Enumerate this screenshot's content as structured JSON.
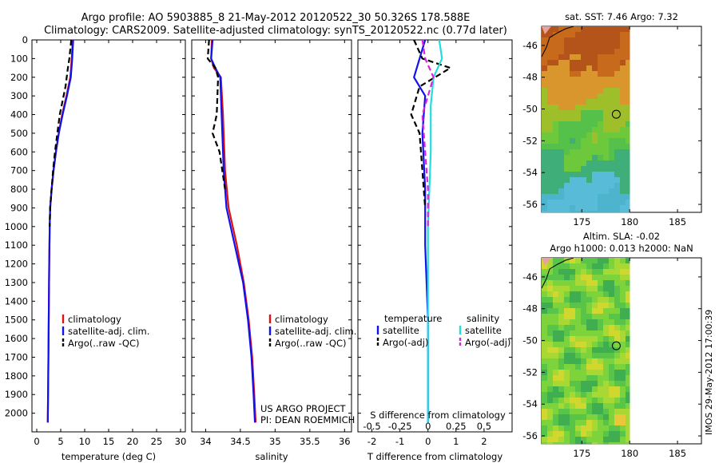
{
  "header": {
    "title_line1": "Argo profile: AO 5903885_8 21-May-2012 20120522_30 50.326S 178.588E",
    "title_line2": "Climatology: CARS2009. Satellite-adjusted climatology: synTS_20120522.nc (0.77d later)"
  },
  "stamp": "IMOS 29-May-2012 17:00:39",
  "credits": {
    "line1": "US ARGO PROJECT",
    "line2": "PI: DEAN ROEMMICH"
  },
  "colors": {
    "red": "#dd1111",
    "blue": "#1111ee",
    "black": "#000000",
    "cyan": "#22dddd",
    "magenta": "#dd22dd"
  },
  "chart_data": [
    {
      "type": "line",
      "xlabel": "temperature (deg C)",
      "ylabel": "",
      "xlim": [
        -1,
        31
      ],
      "ylim": [
        2100,
        0
      ],
      "xticks": [
        "0",
        "5",
        "10",
        "15",
        "20",
        "25",
        "30"
      ],
      "yticks": [
        "0",
        "100",
        "200",
        "300",
        "400",
        "500",
        "600",
        "700",
        "800",
        "900",
        "1000",
        "1100",
        "1200",
        "1300",
        "1400",
        "1500",
        "1600",
        "1700",
        "1800",
        "1900",
        "2000"
      ],
      "legend": [
        "climatology",
        "satellite-adj. clim.",
        "Argo(..raw -QC)"
      ],
      "series": [
        {
          "name": "climatology",
          "color": "red",
          "style": "solid",
          "points": [
            [
              7.5,
              0
            ],
            [
              7.3,
              100
            ],
            [
              7.0,
              200
            ],
            [
              6.2,
              300
            ],
            [
              5.3,
              400
            ],
            [
              4.6,
              500
            ],
            [
              4.0,
              600
            ],
            [
              3.5,
              700
            ],
            [
              3.1,
              800
            ],
            [
              2.8,
              900
            ],
            [
              2.7,
              1000
            ],
            [
              2.6,
              1200
            ],
            [
              2.5,
              1500
            ],
            [
              2.4,
              1800
            ],
            [
              2.3,
              2050
            ]
          ]
        },
        {
          "name": "satellite-adj. clim.",
          "color": "blue",
          "style": "solid",
          "points": [
            [
              7.6,
              0
            ],
            [
              7.4,
              100
            ],
            [
              7.1,
              200
            ],
            [
              6.3,
              300
            ],
            [
              5.4,
              400
            ],
            [
              4.6,
              500
            ],
            [
              4.0,
              600
            ],
            [
              3.5,
              700
            ],
            [
              3.1,
              800
            ],
            [
              2.8,
              900
            ],
            [
              2.7,
              1000
            ],
            [
              2.6,
              1200
            ],
            [
              2.5,
              1500
            ],
            [
              2.4,
              1800
            ],
            [
              2.3,
              2050
            ]
          ]
        },
        {
          "name": "Argo(..raw -QC)",
          "color": "black",
          "style": "dashed",
          "points": [
            [
              7.2,
              0
            ],
            [
              6.8,
              100
            ],
            [
              6.5,
              150
            ],
            [
              6.0,
              250
            ],
            [
              4.8,
              400
            ],
            [
              4.3,
              500
            ],
            [
              3.8,
              600
            ],
            [
              3.4,
              700
            ],
            [
              3.1,
              800
            ],
            [
              2.8,
              900
            ],
            [
              2.7,
              1000
            ]
          ]
        }
      ]
    },
    {
      "type": "line",
      "xlabel": "salinity",
      "ylabel": "",
      "xlim": [
        33.8,
        36.1
      ],
      "ylim": [
        2100,
        0
      ],
      "xticks": [
        "34",
        "34.5",
        "35",
        "35.5",
        "36"
      ],
      "legend": [
        "climatology",
        "satellite-adj. clim.",
        "Argo(..raw -QC)"
      ],
      "series": [
        {
          "name": "climatology",
          "color": "red",
          "style": "solid",
          "points": [
            [
              34.09,
              0
            ],
            [
              34.08,
              100
            ],
            [
              34.12,
              150
            ],
            [
              34.22,
              200
            ],
            [
              34.25,
              400
            ],
            [
              34.28,
              700
            ],
            [
              34.33,
              900
            ],
            [
              34.45,
              1100
            ],
            [
              34.55,
              1300
            ],
            [
              34.62,
              1500
            ],
            [
              34.67,
              1700
            ],
            [
              34.7,
              1900
            ],
            [
              34.72,
              2050
            ]
          ]
        },
        {
          "name": "satellite-adj. clim.",
          "color": "blue",
          "style": "solid",
          "points": [
            [
              34.1,
              0
            ],
            [
              34.08,
              100
            ],
            [
              34.14,
              150
            ],
            [
              34.21,
              200
            ],
            [
              34.23,
              400
            ],
            [
              34.26,
              700
            ],
            [
              34.3,
              900
            ],
            [
              34.42,
              1100
            ],
            [
              34.54,
              1300
            ],
            [
              34.61,
              1500
            ],
            [
              34.66,
              1700
            ],
            [
              34.69,
              1900
            ],
            [
              34.71,
              2050
            ]
          ]
        },
        {
          "name": "Argo(..raw -QC)",
          "color": "black",
          "style": "dashed",
          "points": [
            [
              34.05,
              0
            ],
            [
              34.03,
              100
            ],
            [
              34.14,
              150
            ],
            [
              34.18,
              200
            ],
            [
              34.16,
              400
            ],
            [
              34.1,
              500
            ],
            [
              34.2,
              600
            ],
            [
              34.28,
              800
            ]
          ]
        }
      ]
    },
    {
      "type": "line",
      "xlabel": "T difference from climatology",
      "xlabel_top": "S difference from climatology",
      "ylabel": "",
      "xlim": [
        -2.5,
        3
      ],
      "ylim": [
        2100,
        0
      ],
      "xticks_bottom": [
        "-2",
        "-1",
        "0",
        "1",
        "2"
      ],
      "xticks_top": [
        "-0.5",
        "-0.25",
        "0",
        "0.25",
        "0.5"
      ],
      "legend_left_header": "temperature",
      "legend_right_header": "salinity",
      "legend_left": [
        "satellite",
        "Argo(-adj)"
      ],
      "legend_right": [
        "satellite",
        "Argo(-adj)"
      ],
      "series": [
        {
          "name": "temperature satellite",
          "color": "blue",
          "style": "solid",
          "points": [
            [
              -0.1,
              0
            ],
            [
              -0.3,
              100
            ],
            [
              -0.5,
              200
            ],
            [
              -0.1,
              300
            ],
            [
              -0.2,
              500
            ],
            [
              -0.1,
              800
            ],
            [
              -0.1,
              1100
            ],
            [
              0,
              1500
            ],
            [
              0,
              2050
            ]
          ]
        },
        {
          "name": "temperature Argo(-adj)",
          "color": "black",
          "style": "dashed",
          "points": [
            [
              -0.5,
              0
            ],
            [
              -0.2,
              100
            ],
            [
              0.8,
              150
            ],
            [
              -0.3,
              250
            ],
            [
              -0.6,
              400
            ],
            [
              -0.3,
              500
            ],
            [
              -0.2,
              700
            ],
            [
              -0.1,
              900
            ]
          ]
        },
        {
          "name": "salinity satellite",
          "color": "cyan",
          "style": "solid",
          "points": [
            [
              0.4,
              0
            ],
            [
              0.5,
              100
            ],
            [
              0.2,
              200
            ],
            [
              0.1,
              350
            ],
            [
              0.1,
              600
            ],
            [
              0,
              1000
            ],
            [
              0,
              1500
            ],
            [
              0,
              2050
            ]
          ]
        },
        {
          "name": "salinity Argo(-adj)",
          "color": "magenta",
          "style": "dashed",
          "points": [
            [
              -0.2,
              0
            ],
            [
              -0.1,
              100
            ],
            [
              0.2,
              200
            ],
            [
              -0.2,
              400
            ],
            [
              -0.1,
              600
            ],
            [
              0,
              800
            ],
            [
              0,
              1000
            ]
          ]
        }
      ]
    },
    {
      "type": "heatmap",
      "title": "sat. SST: 7.46 Argo: 7.32",
      "xlim": [
        170.8,
        187.5
      ],
      "ylim": [
        -56.5,
        -44.8
      ],
      "xticks": [
        "175",
        "180",
        "185"
      ],
      "yticks": [
        "-46",
        "-48",
        "-50",
        "-52",
        "-54",
        "-56"
      ],
      "data_extent_lon": [
        170.8,
        180
      ],
      "marker": {
        "lon": 178.6,
        "lat": -50.33
      }
    },
    {
      "type": "heatmap",
      "title_line1": "Altim. SLA: -0.02",
      "title_line2": "Argo h1000: 0.013 h2000: NaN",
      "xlim": [
        170.8,
        187.5
      ],
      "ylim": [
        -56.5,
        -44.8
      ],
      "xticks": [
        "175",
        "180",
        "185"
      ],
      "yticks": [
        "-46",
        "-48",
        "-50",
        "-52",
        "-54",
        "-56"
      ],
      "data_extent_lon": [
        170.8,
        180
      ],
      "marker": {
        "lon": 178.6,
        "lat": -50.33
      }
    }
  ]
}
